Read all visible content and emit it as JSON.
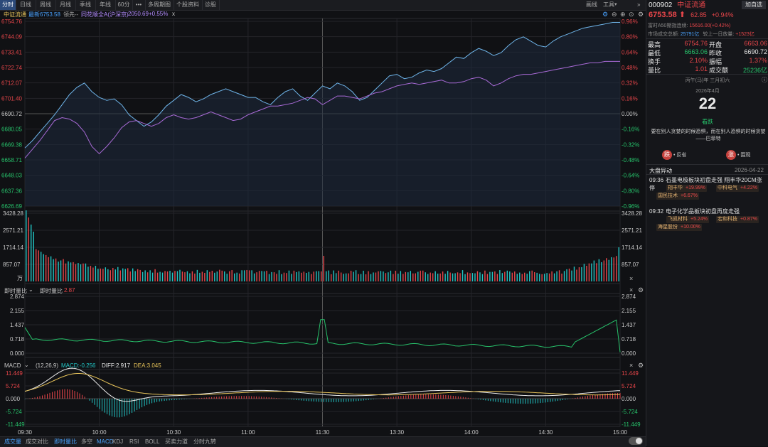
{
  "tabs": [
    "分时",
    "日线",
    "周线",
    "月线",
    "季线",
    "年线",
    "60分",
    "•••",
    "多周期图",
    "个股资料",
    "诊股"
  ],
  "tab_active": 0,
  "top_tools": {
    "draw": "画线",
    "tools": "工具",
    "collapse_icon": "double-chevron-right-icon"
  },
  "price_header": {
    "label": "中证流通",
    "latest": "最新6753.58",
    "lead": "领先--",
    "compare": "同花顺全A(沪深京)",
    "compare_value": "2050.69",
    "compare_pct": "+0.55%",
    "close": "x"
  },
  "price_axis_left": [
    "6754.76",
    "6744.09",
    "6733.41",
    "6722.74",
    "6712.07",
    "6701.40",
    "6690.72",
    "6680.05",
    "6669.38",
    "6658.71",
    "6648.03",
    "6637.36",
    "6626.69"
  ],
  "price_axis_right": [
    "0.96%",
    "0.80%",
    "0.64%",
    "0.48%",
    "0.32%",
    "0.16%",
    "0.00%",
    "-0.16%",
    "-0.32%",
    "-0.48%",
    "-0.64%",
    "-0.80%",
    "-0.96%"
  ],
  "volume_axis": [
    "3428.28",
    "2571.21",
    "1714.14",
    "857.07"
  ],
  "volume_unit": "万",
  "ratio_panel": {
    "title": "即时量比",
    "caret": "⌄",
    "label": "即时量比",
    "value": "2.87",
    "axis": [
      "2.874",
      "2.155",
      "1.437",
      "0.718",
      "0.000"
    ]
  },
  "macd_panel": {
    "title": "MACD",
    "caret": "⌄",
    "params": "(12,26,9)",
    "macd": "MACD:-0.256",
    "diff": "DIFF:2.917",
    "dea": "DEA:3.045",
    "axis": [
      "11.449",
      "5.724",
      "0.000",
      "-5.724",
      "-11.449"
    ]
  },
  "time_axis": [
    "09:30",
    "10:00",
    "10:30",
    "11:00",
    "11:30",
    "13:30",
    "14:00",
    "14:30",
    "15:00"
  ],
  "bottom_tabs": [
    "成交量",
    "成交对比",
    "即时量比",
    "多空",
    "MACD",
    "KDJ",
    "RSI",
    "BOLL",
    "买卖力道",
    "分时九转"
  ],
  "bottom_active": [
    0,
    2,
    4
  ],
  "stock": {
    "code": "000902",
    "name": "中证流通",
    "price": "6753.58",
    "change": "62.85",
    "pct": "+0.94%",
    "add_btn": "加自选"
  },
  "a50": {
    "label": "富时A50期指连续:",
    "value": "15616.00(+0.42%)"
  },
  "turnover": {
    "label": "市场成交总额:",
    "value": "25791亿",
    "compare_label": "较上一日放量:",
    "compare_value": "+1523亿"
  },
  "quote": [
    {
      "l1": "最高",
      "v1": "6754.76",
      "l2": "开盘",
      "v2": "6663.06"
    },
    {
      "l1": "最低",
      "v1": "6663.06",
      "l2": "昨收",
      "v2": "6690.72"
    },
    {
      "l1": "换手",
      "v1": "2.10%",
      "l2": "振幅",
      "v2": "1.37%"
    },
    {
      "l1": "量比",
      "v1": "1.01",
      "l2": "成交额",
      "v2": "25236亿"
    }
  ],
  "calendar": {
    "lunar": "丙午(马)年 三月初六",
    "date": "2026年4月",
    "day": "22",
    "mood": "看跌",
    "quote": "要在别人贪婪的时候恐惧，而在别人恐惧的时候贪婪——巴菲特",
    "bear": "• 反省",
    "bull": "• 围观",
    "bear_icon": "跌",
    "bull_icon": "涨"
  },
  "news": {
    "title": "大盘异动",
    "date": "2026-04-22",
    "items": [
      {
        "time": "09:36",
        "text": "石墨电极板块初盘走强 翔丰华20CM涨停",
        "tags": [
          {
            "name": "翔丰华",
            "pct": "+19.99%"
          },
          {
            "name": "中科电气",
            "pct": "+4.22%"
          },
          {
            "name": "国民技术",
            "pct": "+6.67%"
          }
        ]
      },
      {
        "time": "09:32",
        "text": "电子化学品板块初盘再度走强",
        "tags": [
          {
            "name": "飞凯材料",
            "pct": "+5.24%"
          },
          {
            "name": "宏和科技",
            "pct": "+0.87%"
          },
          {
            "name": "海星股份",
            "pct": "+10.00%"
          }
        ]
      }
    ]
  }
}
